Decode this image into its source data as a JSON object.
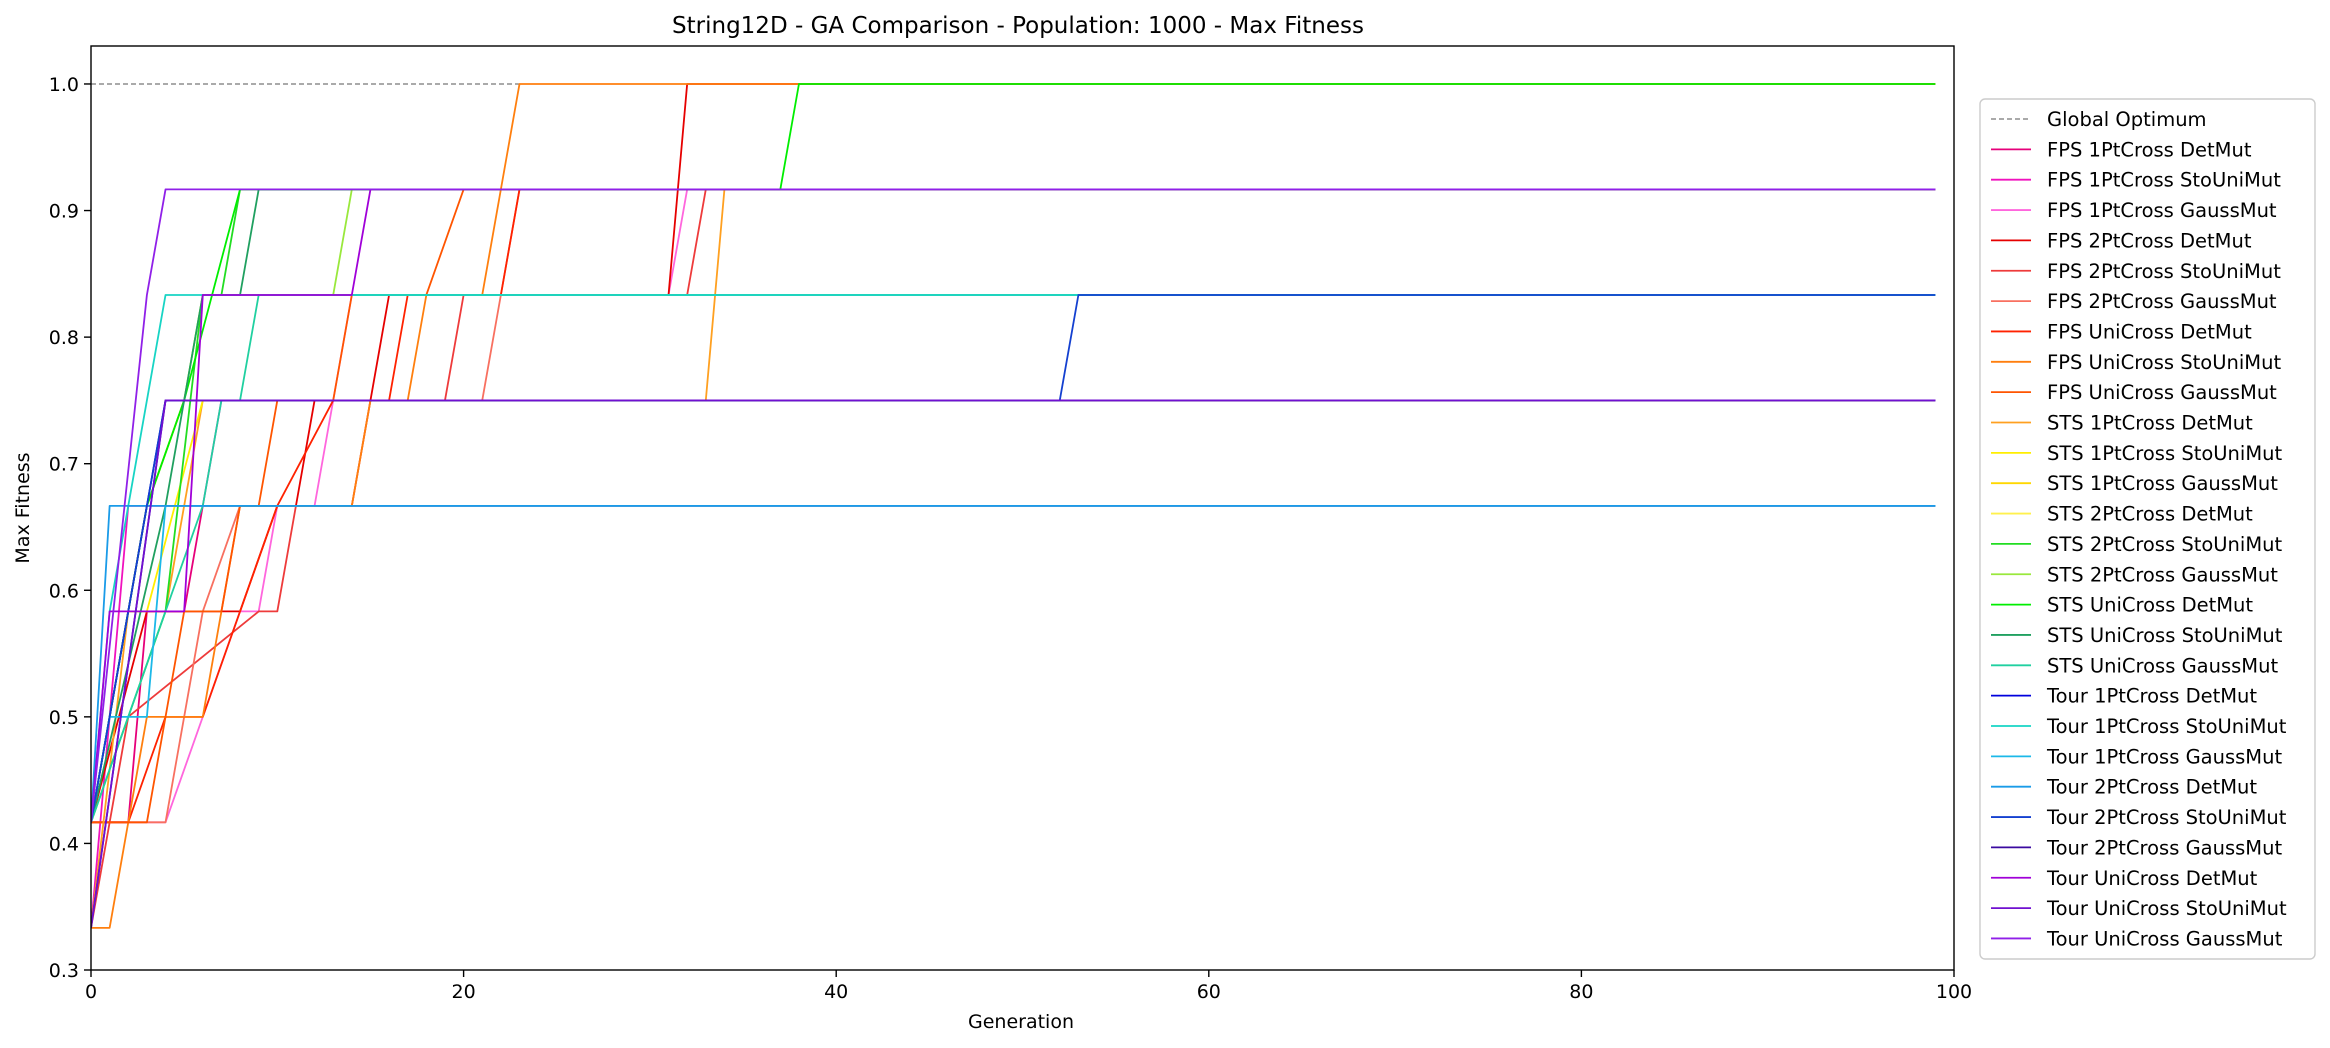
{
  "chart_data": {
    "type": "line",
    "title": "String12D - GA Comparison - Population: 1000 - Max Fitness",
    "xlabel": "Generation",
    "ylabel": "Max Fitness",
    "xlim": [
      0,
      100
    ],
    "ylim": [
      0.3,
      1.03
    ],
    "xticks": [
      "0",
      "20",
      "40",
      "60",
      "80",
      "100"
    ],
    "yticks": [
      "0.3",
      "0.4",
      "0.5",
      "0.6",
      "0.7",
      "0.8",
      "0.9",
      "1.0"
    ],
    "grid": false,
    "legend_position": "right-outside",
    "reference_line": {
      "name": "Global Optimum",
      "y": 1.0,
      "x": [
        0,
        23
      ],
      "color": "#555555",
      "style": "dashed"
    },
    "series": [
      {
        "name": "FPS 1PtCross DetMut",
        "color": "#e6007a",
        "points": [
          [
            0,
            0.4167
          ],
          [
            2,
            0.4167
          ],
          [
            3,
            0.5833
          ],
          [
            5,
            0.5833
          ],
          [
            6,
            0.6667
          ],
          [
            99,
            0.6667
          ]
        ]
      },
      {
        "name": "FPS 1PtCross StoUniMut",
        "color": "#f012be",
        "points": [
          [
            0,
            0.3333
          ],
          [
            2,
            0.6667
          ],
          [
            6,
            0.6667
          ],
          [
            7,
            0.75
          ],
          [
            99,
            0.75
          ]
        ]
      },
      {
        "name": "FPS 1PtCross GaussMut",
        "color": "#ff66dd",
        "points": [
          [
            0,
            0.4167
          ],
          [
            4,
            0.4167
          ],
          [
            8,
            0.5833
          ],
          [
            9,
            0.5833
          ],
          [
            10,
            0.6667
          ],
          [
            12,
            0.6667
          ],
          [
            14,
            0.8333
          ],
          [
            31,
            0.8333
          ],
          [
            32,
            0.9167
          ],
          [
            99,
            0.9167
          ]
        ]
      },
      {
        "name": "FPS 2PtCross DetMut",
        "color": "#e60000",
        "points": [
          [
            0,
            0.4167
          ],
          [
            3,
            0.5833
          ],
          [
            8,
            0.5833
          ],
          [
            10,
            0.6667
          ],
          [
            11,
            0.6667
          ],
          [
            12,
            0.75
          ],
          [
            15,
            0.75
          ],
          [
            16,
            0.8333
          ],
          [
            31,
            0.8333
          ],
          [
            32,
            1.0
          ],
          [
            99,
            1.0
          ]
        ]
      },
      {
        "name": "FPS 2PtCross StoUniMut",
        "color": "#ee3b3b",
        "points": [
          [
            0,
            0.3333
          ],
          [
            2,
            0.5
          ],
          [
            9,
            0.5833
          ],
          [
            10,
            0.5833
          ],
          [
            11,
            0.6667
          ],
          [
            14,
            0.6667
          ],
          [
            15,
            0.75
          ],
          [
            19,
            0.75
          ],
          [
            20,
            0.8333
          ],
          [
            32,
            0.8333
          ],
          [
            33,
            0.9167
          ],
          [
            99,
            0.9167
          ]
        ]
      },
      {
        "name": "FPS 2PtCross GaussMut",
        "color": "#f87060",
        "points": [
          [
            0,
            0.4167
          ],
          [
            4,
            0.4167
          ],
          [
            6,
            0.5833
          ],
          [
            8,
            0.6667
          ],
          [
            14,
            0.6667
          ],
          [
            15,
            0.75
          ],
          [
            21,
            0.75
          ],
          [
            22,
            0.8333
          ],
          [
            23,
            0.9167
          ],
          [
            99,
            0.9167
          ]
        ]
      },
      {
        "name": "FPS UniCross DetMut",
        "color": "#ff2200",
        "points": [
          [
            0,
            0.4167
          ],
          [
            2,
            0.4167
          ],
          [
            4,
            0.5
          ],
          [
            6,
            0.5
          ],
          [
            8,
            0.5833
          ],
          [
            10,
            0.6667
          ],
          [
            13,
            0.75
          ],
          [
            16,
            0.75
          ],
          [
            17,
            0.8333
          ],
          [
            22,
            0.8333
          ],
          [
            23,
            0.9167
          ],
          [
            99,
            0.9167
          ]
        ]
      },
      {
        "name": "FPS UniCross StoUniMut",
        "color": "#ff7f0e",
        "points": [
          [
            0,
            0.3333
          ],
          [
            1,
            0.3333
          ],
          [
            3,
            0.5
          ],
          [
            6,
            0.5
          ],
          [
            7,
            0.5833
          ],
          [
            8,
            0.6667
          ],
          [
            14,
            0.6667
          ],
          [
            15,
            0.75
          ],
          [
            17,
            0.75
          ],
          [
            18,
            0.8333
          ],
          [
            21,
            0.8333
          ],
          [
            23,
            1.0
          ],
          [
            99,
            1.0
          ]
        ]
      },
      {
        "name": "FPS UniCross GaussMut",
        "color": "#ff5500",
        "points": [
          [
            0,
            0.4167
          ],
          [
            3,
            0.4167
          ],
          [
            5,
            0.5833
          ],
          [
            7,
            0.5833
          ],
          [
            8,
            0.6667
          ],
          [
            9,
            0.6667
          ],
          [
            10,
            0.75
          ],
          [
            13,
            0.75
          ],
          [
            14,
            0.8333
          ],
          [
            18,
            0.8333
          ],
          [
            20,
            0.9167
          ],
          [
            99,
            0.9167
          ]
        ]
      },
      {
        "name": "STS 1PtCross DetMut",
        "color": "#ffa020",
        "points": [
          [
            0,
            0.3333
          ],
          [
            2,
            0.5833
          ],
          [
            4,
            0.5833
          ],
          [
            5,
            0.6667
          ],
          [
            6,
            0.75
          ],
          [
            33,
            0.75
          ],
          [
            34,
            0.9167
          ],
          [
            99,
            0.9167
          ]
        ]
      },
      {
        "name": "STS 1PtCross StoUniMut",
        "color": "#ffee00",
        "points": [
          [
            0,
            0.4167
          ],
          [
            2,
            0.5833
          ],
          [
            3,
            0.5833
          ],
          [
            6,
            0.75
          ],
          [
            99,
            0.75
          ]
        ]
      },
      {
        "name": "STS 1PtCross GaussMut",
        "color": "#ffd700",
        "points": [
          [
            0,
            0.4167
          ],
          [
            3,
            0.6667
          ],
          [
            5,
            0.75
          ],
          [
            99,
            0.75
          ]
        ]
      },
      {
        "name": "STS 2PtCross DetMut",
        "color": "#fff04d",
        "points": [
          [
            0,
            0.4167
          ],
          [
            3,
            0.6667
          ],
          [
            5,
            0.75
          ],
          [
            6,
            0.8333
          ],
          [
            99,
            0.8333
          ]
        ]
      },
      {
        "name": "STS 2PtCross StoUniMut",
        "color": "#22dd22",
        "points": [
          [
            0,
            0.4167
          ],
          [
            4,
            0.5833
          ],
          [
            6,
            0.8333
          ],
          [
            7,
            0.8333
          ],
          [
            8,
            0.9167
          ],
          [
            99,
            0.9167
          ]
        ]
      },
      {
        "name": "STS 2PtCross GaussMut",
        "color": "#99e83c",
        "points": [
          [
            0,
            0.4167
          ],
          [
            3,
            0.6667
          ],
          [
            5,
            0.75
          ],
          [
            6,
            0.8333
          ],
          [
            13,
            0.8333
          ],
          [
            14,
            0.9167
          ],
          [
            99,
            0.9167
          ]
        ]
      },
      {
        "name": "STS UniCross DetMut",
        "color": "#00ee00",
        "points": [
          [
            0,
            0.4167
          ],
          [
            3,
            0.6667
          ],
          [
            5,
            0.75
          ],
          [
            8,
            0.9167
          ],
          [
            37,
            0.9167
          ],
          [
            38,
            1.0
          ],
          [
            99,
            1.0
          ]
        ]
      },
      {
        "name": "STS UniCross StoUniMut",
        "color": "#20a060",
        "points": [
          [
            0,
            0.4167
          ],
          [
            4,
            0.6667
          ],
          [
            6,
            0.8333
          ],
          [
            8,
            0.8333
          ],
          [
            9,
            0.9167
          ],
          [
            99,
            0.9167
          ]
        ]
      },
      {
        "name": "STS UniCross GaussMut",
        "color": "#20d0a0",
        "points": [
          [
            0,
            0.4167
          ],
          [
            6,
            0.6667
          ],
          [
            7,
            0.75
          ],
          [
            8,
            0.75
          ],
          [
            9,
            0.8333
          ],
          [
            99,
            0.8333
          ]
        ]
      },
      {
        "name": "Tour 1PtCross DetMut",
        "color": "#0000dd",
        "points": [
          [
            0,
            0.4167
          ],
          [
            4,
            0.75
          ],
          [
            99,
            0.75
          ]
        ]
      },
      {
        "name": "Tour 1PtCross StoUniMut",
        "color": "#17d4c4",
        "points": [
          [
            0,
            0.4167
          ],
          [
            1,
            0.5833
          ],
          [
            4,
            0.8333
          ],
          [
            99,
            0.8333
          ]
        ]
      },
      {
        "name": "Tour 1PtCross GaussMut",
        "color": "#1cb8e8",
        "points": [
          [
            0,
            0.4167
          ],
          [
            1,
            0.5
          ],
          [
            3,
            0.5
          ],
          [
            4,
            0.6667
          ],
          [
            99,
            0.6667
          ]
        ]
      },
      {
        "name": "Tour 2PtCross DetMut",
        "color": "#1a9be8",
        "points": [
          [
            0,
            0.4167
          ],
          [
            1,
            0.6667
          ],
          [
            99,
            0.6667
          ]
        ]
      },
      {
        "name": "Tour 2PtCross StoUniMut",
        "color": "#1440d0",
        "points": [
          [
            0,
            0.4167
          ],
          [
            4,
            0.75
          ],
          [
            52,
            0.75
          ],
          [
            53,
            0.8333
          ],
          [
            99,
            0.8333
          ]
        ]
      },
      {
        "name": "Tour 2PtCross GaussMut",
        "color": "#3a0aa0",
        "points": [
          [
            0,
            0.3333
          ],
          [
            4,
            0.75
          ],
          [
            99,
            0.75
          ]
        ]
      },
      {
        "name": "Tour UniCross DetMut",
        "color": "#a000d8",
        "points": [
          [
            0,
            0.4167
          ],
          [
            1,
            0.5833
          ],
          [
            5,
            0.5833
          ],
          [
            6,
            0.8333
          ],
          [
            14,
            0.8333
          ],
          [
            15,
            0.9167
          ],
          [
            99,
            0.9167
          ]
        ]
      },
      {
        "name": "Tour UniCross StoUniMut",
        "color": "#7010d0",
        "points": [
          [
            0,
            0.3333
          ],
          [
            4,
            0.75
          ],
          [
            99,
            0.75
          ]
        ]
      },
      {
        "name": "Tour UniCross GaussMut",
        "color": "#9020e8",
        "points": [
          [
            0,
            0.4167
          ],
          [
            3,
            0.8333
          ],
          [
            4,
            0.9167
          ],
          [
            99,
            0.9167
          ]
        ]
      }
    ]
  }
}
